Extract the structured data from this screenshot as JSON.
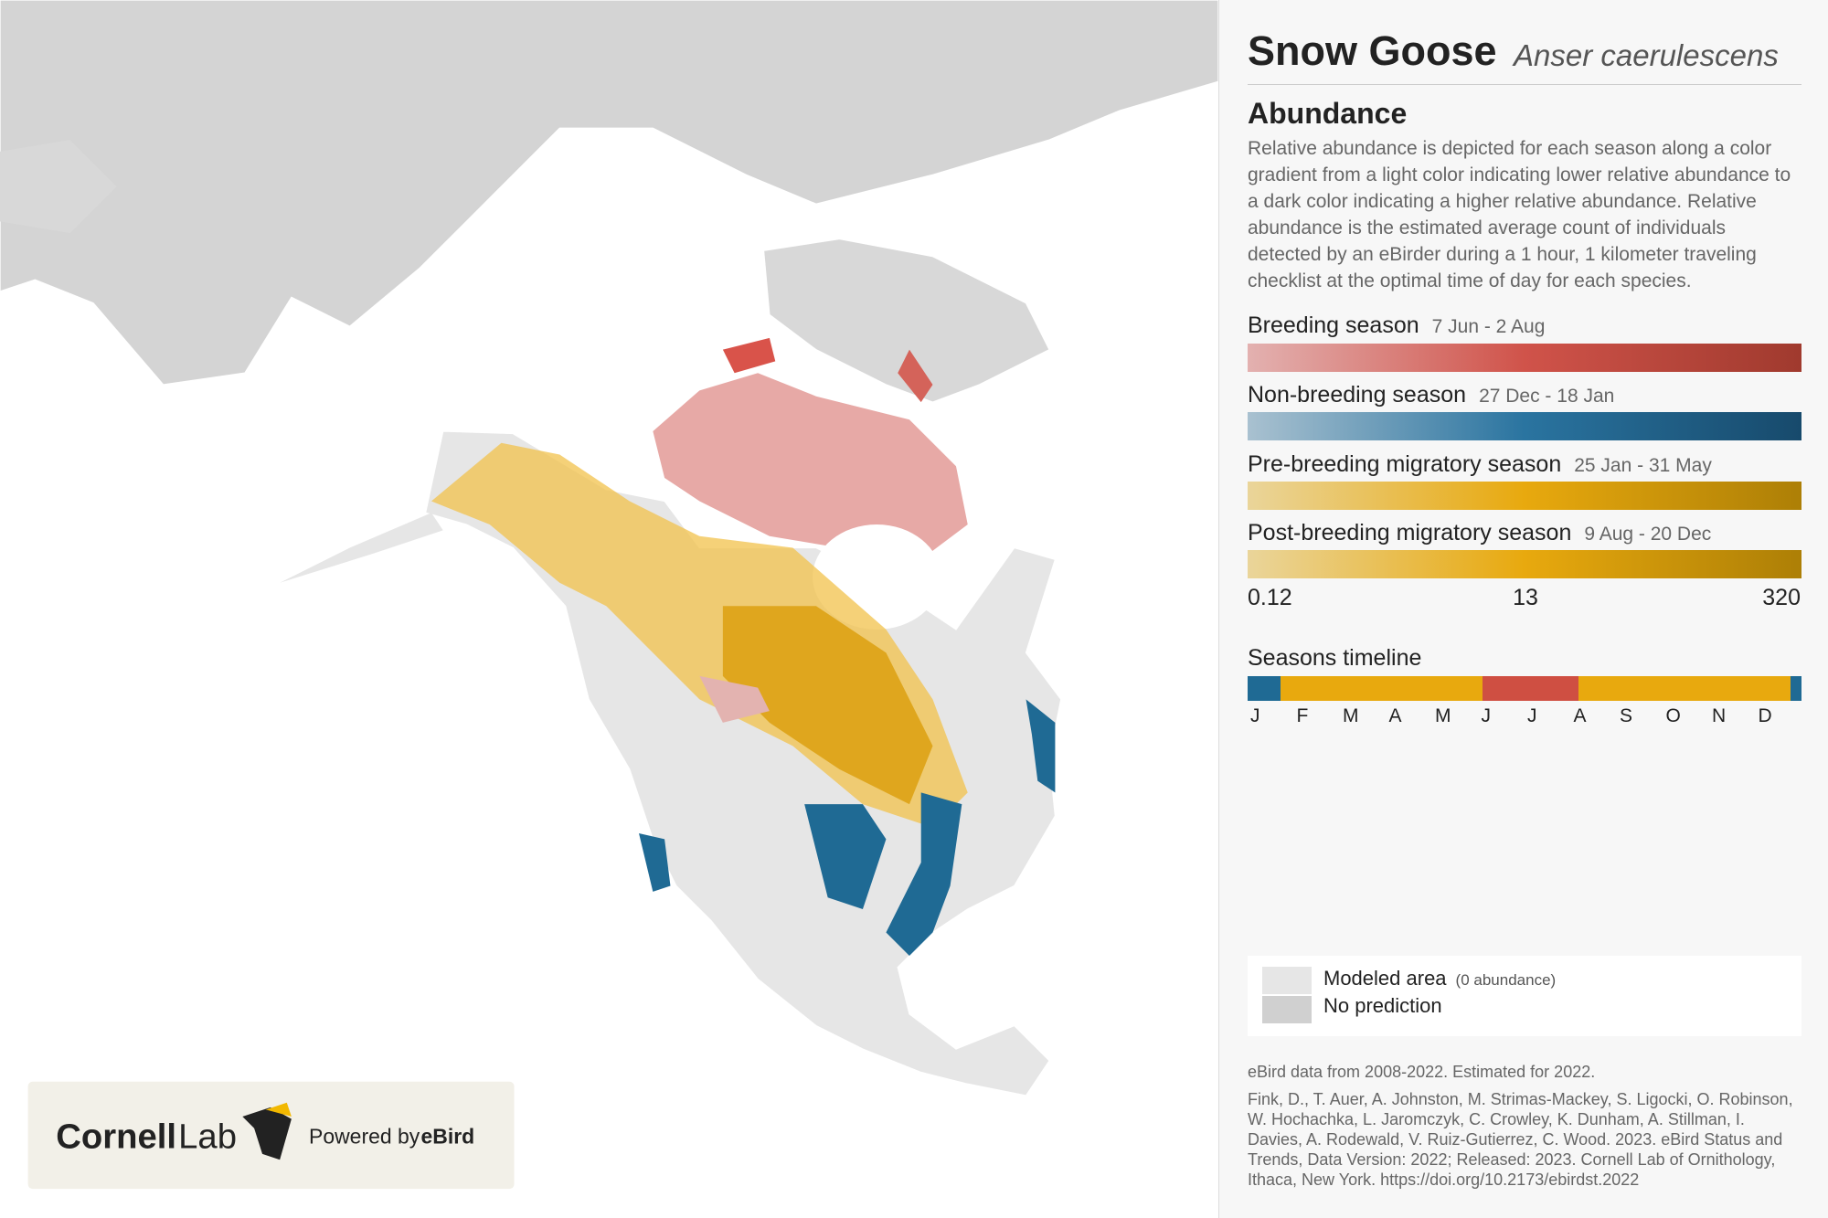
{
  "header": {
    "common_name": "Snow Goose",
    "scientific_name": "Anser caerulescens"
  },
  "abundance": {
    "title": "Abundance",
    "description": "Relative abundance is depicted for each season along a color gradient from a light color indicating lower relative abundance to a dark color indicating a higher relative abundance. Relative abundance is the estimated average count of individuals detected by an eBirder during a 1 hour, 1 kilometer traveling checklist at the optimal time of day for each species."
  },
  "seasons": [
    {
      "name": "Breeding season",
      "dates": "7 Jun - 2 Aug"
    },
    {
      "name": "Non-breeding season",
      "dates": "27 Dec - 18 Jan"
    },
    {
      "name": "Pre-breeding migratory season",
      "dates": "25 Jan - 31 May"
    },
    {
      "name": "Post-breeding migratory season",
      "dates": "9 Aug - 20 Dec"
    }
  ],
  "scale_labels": [
    "0.12",
    "13",
    "320"
  ],
  "timeline": {
    "title": "Seasons timeline",
    "months": [
      "J",
      "F",
      "M",
      "A",
      "M",
      "J",
      "J",
      "A",
      "S",
      "O",
      "N",
      "D"
    ]
  },
  "legend": [
    {
      "label": "Modeled area",
      "note": "(0 abundance)"
    },
    {
      "label": "No prediction"
    }
  ],
  "footer": {
    "data_note": "eBird data from 2008-2022. Estimated for 2022.",
    "citation": "Fink, D., T. Auer, A. Johnston, M. Strimas-Mackey, S. Ligocki, O. Robinson, W. Hochachka, L. Jaromczyk, C. Crowley, K. Dunham, A. Stillman, I. Davies, A. Rodewald, V. Ruiz-Gutierrez, C. Wood. 2023. eBird Status and Trends, Data Version: 2022; Released: 2023. Cornell Lab of Ornithology, Ithaca, New York. https://doi.org/10.2173/ebirdst.2022"
  },
  "branding": {
    "logo_bold": "Cornell",
    "logo_light": "Lab",
    "powered_by": "Powered by",
    "ebird": "eBird"
  }
}
